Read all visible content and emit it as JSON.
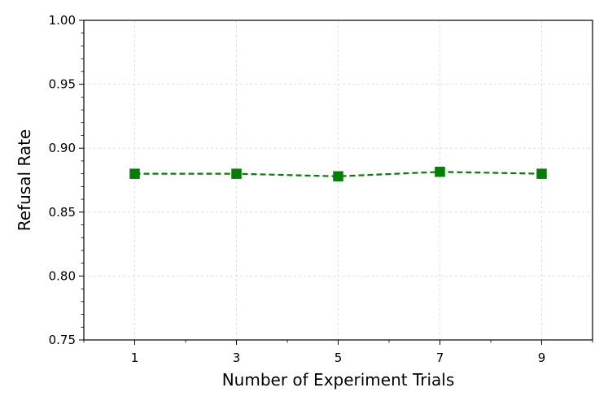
{
  "chart_data": {
    "type": "line",
    "title": "",
    "xlabel": "Number of Experiment Trials",
    "ylabel": "Refusal Rate",
    "xlim": [
      0,
      10
    ],
    "ylim": [
      0.75,
      1.0
    ],
    "x_ticks": [
      "1",
      "3",
      "5",
      "7",
      "9"
    ],
    "y_ticks": [
      "0.75",
      "0.80",
      "0.85",
      "0.90",
      "0.95",
      "1.00"
    ],
    "grid": true,
    "legend": "none",
    "series": [
      {
        "x": [
          1,
          3,
          5,
          7,
          9
        ],
        "values": [
          0.88,
          0.88,
          0.878,
          0.8815,
          0.88
        ],
        "color": "#008000",
        "line_style": "dashed",
        "marker": "square"
      }
    ]
  }
}
